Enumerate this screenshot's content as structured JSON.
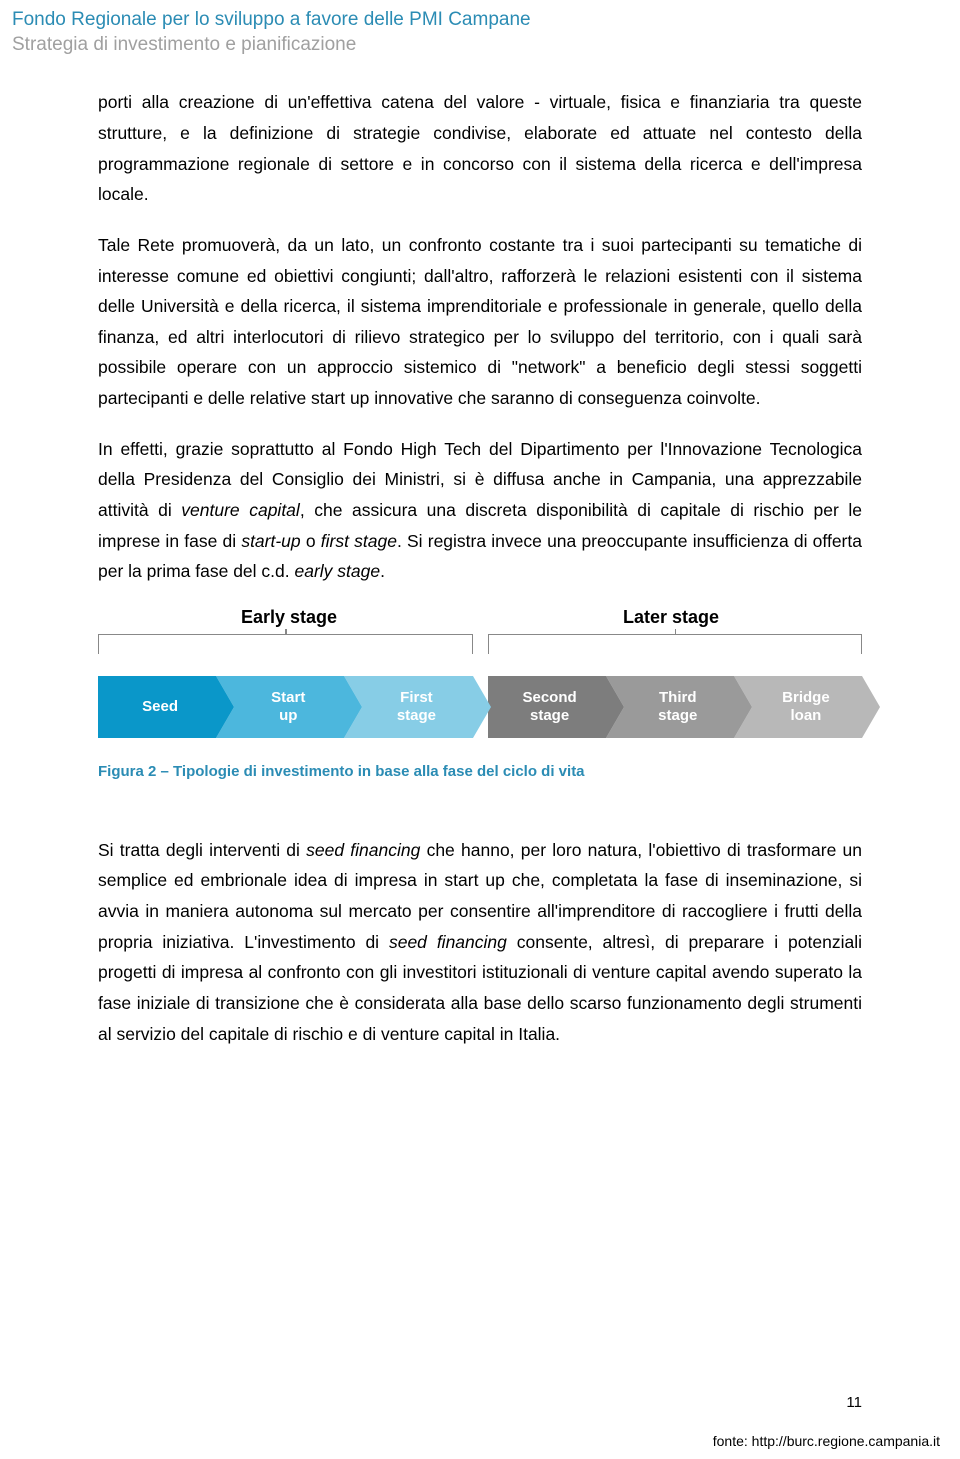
{
  "header": {
    "title": "Fondo Regionale per lo sviluppo a favore delle PMI Campane",
    "subtitle": "Strategia di investimento e pianificazione"
  },
  "paragraphs": {
    "p1": "porti alla creazione di un'effettiva catena del valore - virtuale, fisica e finanziaria tra queste strutture, e la definizione di strategie condivise, elaborate ed attuate nel contesto della programmazione regionale di settore e in concorso con il sistema della ricerca e dell'impresa locale.",
    "p2": "Tale Rete promuoverà, da un lato, un confronto costante tra i suoi partecipanti su tematiche di interesse comune ed obiettivi congiunti; dall'altro, rafforzerà le relazioni esistenti con il sistema delle Università e della ricerca, il sistema imprenditoriale e professionale in generale, quello della finanza, ed altri interlocutori di rilievo strategico per lo sviluppo del territorio, con i quali sarà possibile operare con un approccio sistemico di \"network\" a beneficio degli stessi soggetti partecipanti e delle relative start up innovative che saranno di conseguenza coinvolte.",
    "p3_a": "In effetti, grazie soprattutto al Fondo High Tech del Dipartimento per l'Innovazione Tecnologica della Presidenza del Consiglio dei Ministri, si è diffusa anche in Campania, una apprezzabile attività di ",
    "p3_i1": "venture capital",
    "p3_b": ", che assicura una discreta disponibilità di capitale di rischio per le imprese in fase di ",
    "p3_i2": "start-up",
    "p3_c": " o ",
    "p3_i3": "first stage",
    "p3_d": ". Si registra invece una preoccupante insufficienza di offerta per la prima fase del c.d. ",
    "p3_i4": "early stage",
    "p3_e": ".",
    "p4_a": "Si tratta degli interventi di ",
    "p4_i1": "seed financing",
    "p4_b": " che hanno, per loro natura, l'obiettivo di trasformare un semplice ed embrionale idea di impresa in start up che, completata la fase di inseminazione, si avvia in maniera autonoma sul mercato per consentire all'imprenditore di raccogliere i frutti della propria iniziativa. L'investimento di ",
    "p4_i2": "seed financing",
    "p4_c": " consente, altresì, di preparare i potenziali progetti di impresa al confronto con gli investitori istituzionali di venture capital avendo superato la fase iniziale di transizione che è considerata alla base dello scarso funzionamento degli strumenti al servizio del capitale di rischio e di venture capital in Italia."
  },
  "diagram": {
    "type": "chevron-flow",
    "header_left": "Early stage",
    "header_right": "Later stage",
    "bracket_color": "#888888",
    "groups": [
      {
        "items": [
          {
            "label": "Seed",
            "bg": "#0a97c9"
          },
          {
            "label_line1": "Start",
            "label_line2": "up",
            "bg": "#4cb7dd"
          },
          {
            "label_line1": "First",
            "label_line2": "stage",
            "bg": "#87cde6"
          }
        ]
      },
      {
        "items": [
          {
            "label_line1": "Second",
            "label_line2": "stage",
            "bg": "#7d7d7d"
          },
          {
            "label_line1": "Third",
            "label_line2": "stage",
            "bg": "#9a9a9a"
          },
          {
            "label_line1": "Bridge",
            "label_line2": "loan",
            "bg": "#b8b8b8"
          }
        ]
      }
    ],
    "chevron_height": 62,
    "text_color": "#ffffff",
    "font_weight": "bold"
  },
  "caption": "Figura 2 – Tipologie di investimento in base alla fase del ciclo di vita",
  "page_number": "11",
  "footer": "fonte: http://burc.regione.campania.it"
}
